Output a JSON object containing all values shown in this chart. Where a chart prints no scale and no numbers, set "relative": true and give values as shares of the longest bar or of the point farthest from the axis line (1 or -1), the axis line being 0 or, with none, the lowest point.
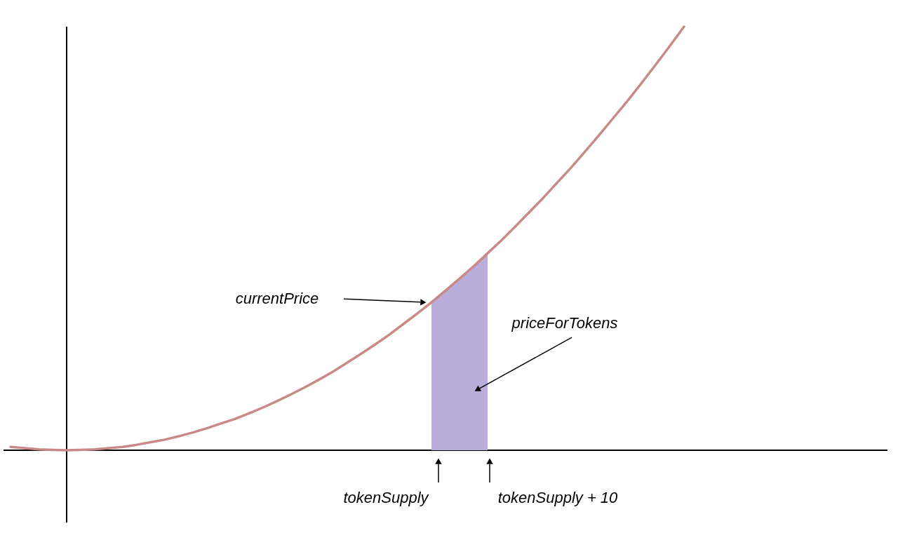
{
  "chart_data": {
    "type": "line",
    "relative": true,
    "categories": [
      null,
      null,
      null,
      null,
      null,
      null,
      null,
      null,
      null,
      null,
      null,
      null,
      null,
      null,
      null,
      null,
      null,
      null,
      null,
      null,
      null,
      null,
      null,
      null,
      null,
      null,
      null,
      null,
      null,
      null,
      null,
      null,
      null,
      null,
      null,
      null,
      null,
      null,
      null,
      null,
      null,
      null,
      null,
      null,
      null,
      null,
      null,
      null,
      null,
      null,
      null,
      null,
      null,
      null,
      null,
      null,
      null,
      null,
      null,
      null,
      null,
      null,
      null
    ],
    "series": [
      {
        "type": "area",
        "color": "#b9aedb",
        "values": [
          null,
          null,
          null,
          null,
          null,
          null,
          null,
          null,
          null,
          null,
          null,
          null,
          null,
          null,
          null,
          null,
          null,
          null,
          null,
          null,
          null,
          null,
          null,
          null,
          null,
          null,
          null,
          null,
          null,
          null,
          0.349,
          0.377,
          0.405,
          0.434,
          0.465,
          null,
          null,
          null,
          null,
          null,
          null,
          null,
          null,
          null,
          null,
          null,
          null,
          null,
          null,
          null,
          null,
          null,
          null,
          null,
          null,
          null,
          null,
          null,
          null,
          null,
          null,
          null,
          null
        ]
      },
      {
        "color": "#c98a87",
        "values": [
          0.008,
          0.005,
          0.002,
          0.001,
          0,
          0.001,
          0.002,
          0.005,
          0.008,
          0.013,
          0.019,
          0.025,
          0.033,
          0.042,
          0.052,
          0.063,
          0.074,
          0.087,
          0.101,
          0.116,
          0.132,
          0.149,
          0.167,
          0.186,
          0.207,
          0.228,
          0.25,
          0.273,
          0.298,
          0.323,
          0.349,
          0.377,
          0.405,
          0.434,
          0.465,
          0.496,
          0.529,
          0.563,
          0.597,
          0.633,
          0.669,
          0.707,
          0.746,
          0.786,
          0.826,
          0.868,
          0.911,
          0.955,
          1,
          null,
          null,
          null,
          null,
          null,
          null,
          null,
          null,
          null,
          null,
          null,
          null,
          null,
          null
        ]
      }
    ],
    "annotations": [
      "currentPrice",
      "priceForTokens",
      "tokenSupply",
      "tokenSupply + 10"
    ]
  }
}
